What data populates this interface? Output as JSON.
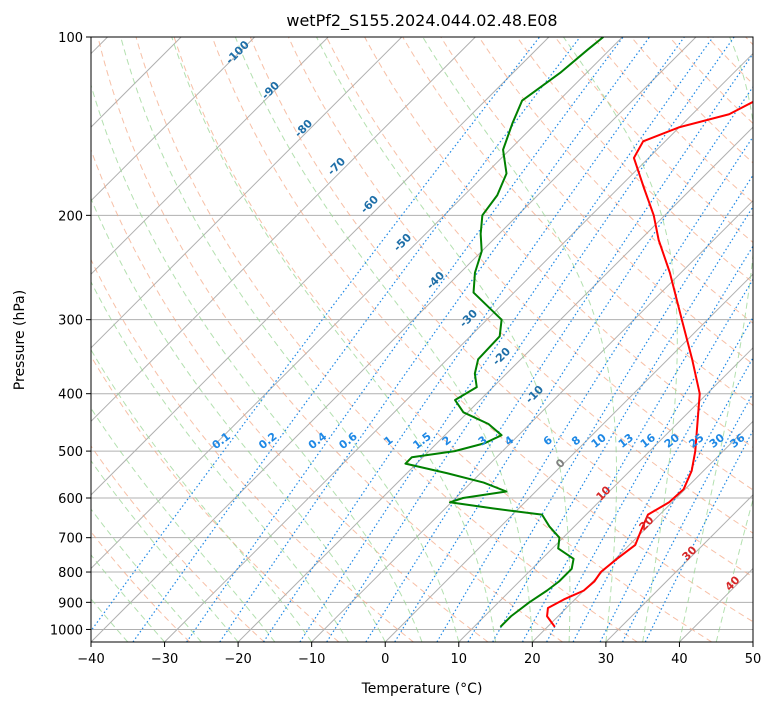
{
  "chart_data": {
    "type": "line",
    "title": "wetPf2_S155.2024.044.02.48.E08",
    "xlabel": "Temperature (°C)",
    "ylabel": "Pressure (hPa)",
    "xlim": [
      -40,
      50
    ],
    "ylim": [
      1050,
      100
    ],
    "y_scale": "log",
    "x_ticks": [
      -40,
      -30,
      -20,
      -10,
      0,
      10,
      20,
      30,
      40,
      50
    ],
    "y_ticks": [
      1000,
      900,
      800,
      700,
      600,
      500,
      400,
      300,
      200,
      100
    ],
    "skew": 45,
    "grid": true,
    "colors": {
      "temperature": "#ff0000",
      "dewpoint": "#008000",
      "dry_adiabat": "#f4a582",
      "moist_adiabat": "#99d594",
      "mixing_ratio": "#1e88e5",
      "dry_label": "#1f6fa8",
      "moist_label": "#d62728",
      "saturated": "#d9b38c",
      "zero_label": "#808080"
    },
    "series": [
      {
        "name": "temperature",
        "points": [
          {
            "p": 990,
            "t": 21.0
          },
          {
            "p": 950,
            "t": 18.5
          },
          {
            "p": 920,
            "t": 17.5
          },
          {
            "p": 890,
            "t": 18.5
          },
          {
            "p": 860,
            "t": 20.0
          },
          {
            "p": 830,
            "t": 20.2
          },
          {
            "p": 800,
            "t": 19.8
          },
          {
            "p": 760,
            "t": 20.2
          },
          {
            "p": 720,
            "t": 20.8
          },
          {
            "p": 680,
            "t": 19.6
          },
          {
            "p": 640,
            "t": 18.4
          },
          {
            "p": 610,
            "t": 19.6
          },
          {
            "p": 580,
            "t": 19.8
          },
          {
            "p": 540,
            "t": 18.4
          },
          {
            "p": 500,
            "t": 16.2
          },
          {
            "p": 450,
            "t": 12.8
          },
          {
            "p": 400,
            "t": 9.0
          },
          {
            "p": 350,
            "t": 3.3
          },
          {
            "p": 300,
            "t": -3.5
          },
          {
            "p": 250,
            "t": -11.5
          },
          {
            "p": 220,
            "t": -17.5
          },
          {
            "p": 200,
            "t": -21.5
          },
          {
            "p": 180,
            "t": -26.5
          },
          {
            "p": 160,
            "t": -32.0
          },
          {
            "p": 150,
            "t": -33.0
          },
          {
            "p": 142,
            "t": -30.0
          },
          {
            "p": 135,
            "t": -25.0
          },
          {
            "p": 125,
            "t": -22.5
          },
          {
            "p": 115,
            "t": -23.5
          },
          {
            "p": 108,
            "t": -27.0
          },
          {
            "p": 100,
            "t": -31.0
          }
        ]
      },
      {
        "name": "dewpoint",
        "points": [
          {
            "p": 990,
            "t": 13.6
          },
          {
            "p": 950,
            "t": 13.6
          },
          {
            "p": 900,
            "t": 14.2
          },
          {
            "p": 860,
            "t": 15.0
          },
          {
            "p": 830,
            "t": 15.4
          },
          {
            "p": 790,
            "t": 15.4
          },
          {
            "p": 760,
            "t": 14.3
          },
          {
            "p": 730,
            "t": 10.8
          },
          {
            "p": 700,
            "t": 9.5
          },
          {
            "p": 670,
            "t": 6.6
          },
          {
            "p": 640,
            "t": 4.0
          },
          {
            "p": 625,
            "t": -3.4
          },
          {
            "p": 610,
            "t": -10.2
          },
          {
            "p": 600,
            "t": -9.0
          },
          {
            "p": 585,
            "t": -4.0
          },
          {
            "p": 565,
            "t": -8.3
          },
          {
            "p": 545,
            "t": -14.5
          },
          {
            "p": 525,
            "t": -21.5
          },
          {
            "p": 512,
            "t": -21.5
          },
          {
            "p": 500,
            "t": -16.5
          },
          {
            "p": 485,
            "t": -13.5
          },
          {
            "p": 470,
            "t": -12.3
          },
          {
            "p": 450,
            "t": -15.6
          },
          {
            "p": 430,
            "t": -20.6
          },
          {
            "p": 410,
            "t": -23.4
          },
          {
            "p": 390,
            "t": -22.2
          },
          {
            "p": 370,
            "t": -24.3
          },
          {
            "p": 350,
            "t": -25.8
          },
          {
            "p": 320,
            "t": -26.0
          },
          {
            "p": 300,
            "t": -28.0
          },
          {
            "p": 270,
            "t": -35.5
          },
          {
            "p": 250,
            "t": -38.0
          },
          {
            "p": 230,
            "t": -40.0
          },
          {
            "p": 215,
            "t": -42.5
          },
          {
            "p": 200,
            "t": -44.8
          },
          {
            "p": 185,
            "t": -45.5
          },
          {
            "p": 170,
            "t": -47.2
          },
          {
            "p": 155,
            "t": -50.9
          },
          {
            "p": 140,
            "t": -53.2
          },
          {
            "p": 128,
            "t": -55.0
          },
          {
            "p": 115,
            "t": -53.6
          },
          {
            "p": 105,
            "t": -53.0
          },
          {
            "p": 100,
            "t": -52.6
          }
        ]
      }
    ],
    "dry_adiabat_labels": [
      "-100",
      "-90",
      "-80",
      "-70",
      "-60",
      "-50",
      "-40",
      "-30",
      "-20",
      "-10"
    ],
    "moist_adiabat_labels": [
      "0",
      "10",
      "20",
      "30",
      "40"
    ],
    "mixing_ratio_labels": [
      "0.1",
      "0.2",
      "0.4",
      "0.6",
      "1",
      "1.5",
      "2",
      "3",
      "4",
      "6",
      "8",
      "10",
      "13",
      "16",
      "20",
      "25",
      "30",
      "36"
    ]
  }
}
